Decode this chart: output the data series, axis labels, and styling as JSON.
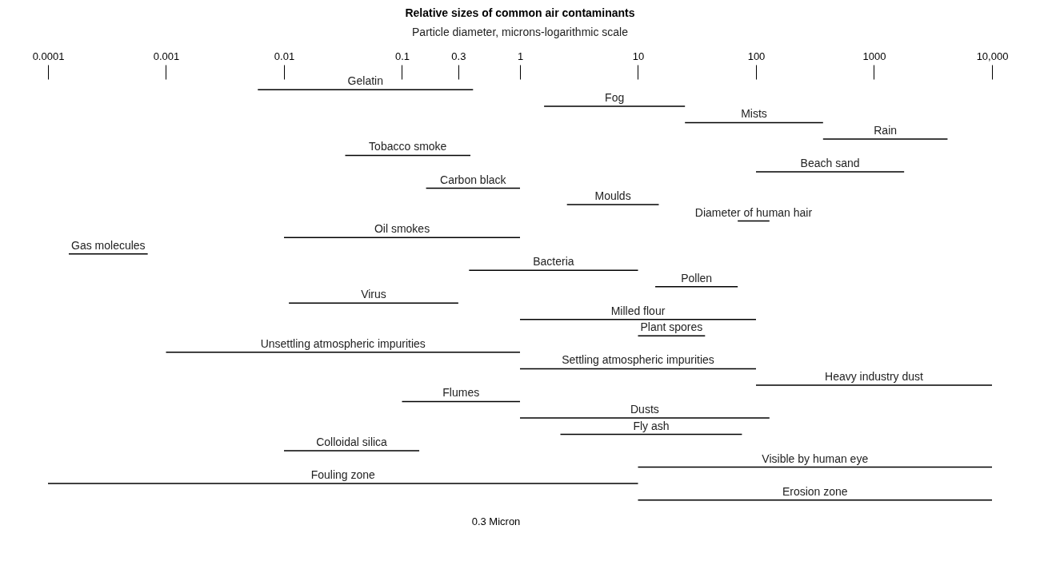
{
  "chart_data": {
    "type": "bar",
    "orientation": "horizontal",
    "log": "x",
    "title": "Relative sizes of common air contaminants",
    "subtitle": "Particle diameter, microns-logarithmic scale",
    "color": "#000000",
    "grid": false,
    "xlim": [
      0.0001,
      10000
    ],
    "xticks": [
      0.0001,
      0.001,
      0.01,
      0.1,
      0.3,
      1,
      10,
      100,
      1000,
      {
        "value": 10000,
        "label": "10,000"
      }
    ],
    "categories": [
      "Gelatin",
      "Fog",
      "Mists",
      "Rain",
      "Tobacco smoke",
      "Beach sand",
      "Carbon black",
      "Moulds",
      "Diameter of human hair",
      "Oil smokes",
      "Gas molecules",
      "Bacteria",
      "Pollen",
      "Virus",
      "Milled flour",
      "Plant spores",
      "Unsettling atmospheric impurities",
      "Settling atmospheric impurities",
      "Heavy industry dust",
      "Flumes",
      "Dusts",
      "Fly ash",
      "Colloidal silica",
      "Visible by human eye",
      "Fouling zone",
      "Erosion zone"
    ],
    "base": [
      0.006,
      1.6,
      25,
      370,
      0.033,
      100,
      0.16,
      2.5,
      70,
      0.01,
      0.00015,
      0.37,
      14,
      0.011,
      1,
      10,
      0.001,
      1,
      100,
      0.1,
      1,
      2.2,
      0.01,
      10,
      0.0001,
      10
    ],
    "values": [
      0.394,
      23.4,
      345,
      3830,
      0.347,
      1700,
      0.84,
      12.5,
      60,
      0.99,
      0.00055,
      9.63,
      56,
      0.289,
      99,
      27,
      0.999,
      99,
      9900,
      0.9,
      129,
      73.8,
      0.13,
      9990,
      9.9999,
      9990
    ],
    "annotations": [
      "0.3 Micron"
    ]
  }
}
